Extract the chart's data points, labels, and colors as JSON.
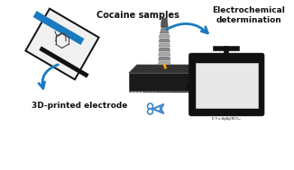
{
  "bg_color": "#ffffff",
  "arrow_color": "#1a7abf",
  "text_cocaine": "Cocaine samples",
  "text_electrode": "3D-printed electrode",
  "text_electrochemical": "Electrochemical determination",
  "monitor_color": "#1a1a1a",
  "monitor_screen_color": "#f5f5f5",
  "plot_line_color": "#ff6666",
  "plot_bg": "#f5f5f5",
  "scissors_color": "#4488cc",
  "bag_border_color": "#1a1a1a",
  "bag_stripe_color": "#1a7abf",
  "molecule_color": "#444444",
  "electrode_body_color": "#222222",
  "electrode_silver_color": "#aaaaaa"
}
